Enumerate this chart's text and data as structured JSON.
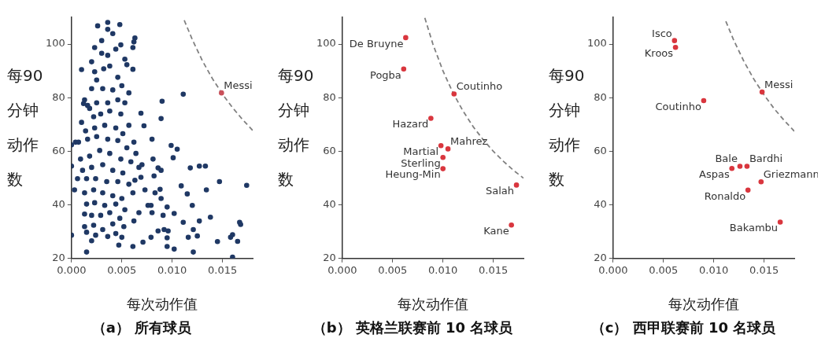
{
  "chart_data": [
    {
      "type": "scatter",
      "title": "（a） 所有球员",
      "xlabel": "每次动作值",
      "ylabel": "每90分钟动作数",
      "xlim": [
        0,
        0.018
      ],
      "ylim": [
        20,
        110
      ],
      "xticks": [
        {
          "value": 0,
          "label": "0.000"
        },
        {
          "value": 0.005,
          "label": "0.005"
        },
        {
          "value": 0.01,
          "label": "0.010"
        },
        {
          "value": 0.015,
          "label": "0.015"
        }
      ],
      "yticks": [
        20,
        40,
        60,
        80,
        100
      ],
      "grid": false,
      "legend": false,
      "marker": "circle",
      "series": [
        {
          "color": "#1f3864",
          "x": [
            0.001,
            0.0012,
            0,
            0,
            0,
            0.0015,
            0.0111,
            0.009,
            0.0089,
            0.0069,
            0.0072,
            0.008,
            0.0099,
            0.0105,
            0.0101,
            0.0081,
            0.0086,
            0.0089,
            0.0118,
            0.0127,
            0.0133,
            0.0147,
            0.0174,
            0.0109,
            0.0115,
            0.0134,
            0.012,
            0.0102,
            0.0138,
            0.0111,
            0.0127,
            0.0121,
            0.0125,
            0.0116,
            0.0145,
            0.016,
            0.0158,
            0.0165,
            0.0167,
            0.0168,
            0.016,
            0.0121,
            0.0102,
            0.0095,
            0.0095,
            0.0086,
            0.0092,
            0.0096,
            0.0091,
            0.0095,
            0.0089,
            0.0088,
            0.0082,
            0.0083,
            0.0079,
            0.008,
            0.0076,
            0.0073,
            0.0069,
            0.0067,
            0.007,
            0.0063,
            0.0061,
            0.0067,
            0.0062,
            0.0071,
            0.0061,
            0.0079,
            0.0047,
            0.005,
            0.0052,
            0.0063,
            0.0062,
            0.0061,
            0.0048,
            0.0036,
            0.0026,
            0.0036,
            0.0041,
            0.003,
            0.0023,
            0.0049,
            0.0044,
            0.003,
            0.0036,
            0.002,
            0.0053,
            0.0055,
            0.0061,
            0.0023,
            0.0032,
            0.0038,
            0.0025,
            0.0046,
            0.005,
            0.0057,
            0.002,
            0.0031,
            0.0041,
            0.0013,
            0.0018,
            0.0025,
            0.0036,
            0.0046,
            0.0053,
            0.0022,
            0.0029,
            0.0038,
            0.0049,
            0.0057,
            0.001,
            0.0014,
            0.0023,
            0.0033,
            0.0044,
            0.0051,
            0.0062,
            0.0004,
            0.0007,
            0.0016,
            0.0025,
            0.0036,
            0.0046,
            0.0055,
            0.0064,
            0.0009,
            0.0018,
            0.0028,
            0.0038,
            0.0049,
            0.0059,
            0.0011,
            0.002,
            0.0031,
            0.0041,
            0.0051,
            0.0006,
            0.0015,
            0.0024,
            0.0035,
            0.0046,
            0.0057,
            0.0003,
            0.0013,
            0.0022,
            0.0031,
            0.0041,
            0.005,
            0.0015,
            0.0023,
            0.0033,
            0.0044,
            0.0053,
            0.0013,
            0.002,
            0.0029,
            0.0038,
            0.0048,
            0.0013,
            0.0022,
            0.0031,
            0.0041,
            0.0015,
            0.0024,
            0.0036,
            0.002,
            0.0044,
            0.0016
          ],
          "values": [
            90.5,
            77.8,
            62.4,
            54.5,
            28.7,
            22.4,
            81.3,
            78.7,
            72.2,
            74.2,
            69.5,
            64.5,
            62.2,
            60.8,
            57.6,
            57.1,
            53.8,
            52.9,
            53.8,
            54.5,
            54.5,
            48.7,
            47.3,
            47.1,
            44.1,
            45.6,
            39.8,
            36.8,
            35.4,
            33.5,
            34,
            30.8,
            28.4,
            27.9,
            26.3,
            28.9,
            27.9,
            26.4,
            33.5,
            32.7,
            20.5,
            22.4,
            23.5,
            24.5,
            27.7,
            30.3,
            30.8,
            30.3,
            36.1,
            39.2,
            42.4,
            45.8,
            50.8,
            44.5,
            39.8,
            37.1,
            39.8,
            45.6,
            50.3,
            54,
            55,
            49.2,
            44.5,
            37.1,
            34,
            26.1,
            24.5,
            27.9,
            25,
            27.9,
            31.9,
            102.3,
            100.8,
            98.7,
            107.3,
            108.1,
            106.8,
            105.5,
            103.9,
            101.3,
            98.7,
            99.7,
            98.1,
            96.6,
            95.8,
            93.4,
            94.4,
            92.3,
            90.6,
            89.7,
            90.8,
            91.8,
            86.6,
            87.6,
            84.5,
            81.8,
            83.4,
            83.4,
            82.9,
            79.2,
            76,
            78.1,
            78.1,
            79.2,
            78.1,
            72.9,
            73.9,
            75,
            73.9,
            69.7,
            70.8,
            67.6,
            68.7,
            69.7,
            68.7,
            66.6,
            63.4,
            63.4,
            63.4,
            64.5,
            65.5,
            64.5,
            64,
            61.3,
            59.2,
            57.1,
            58.2,
            60.3,
            59.2,
            57.1,
            56.1,
            52.9,
            54,
            55,
            52.9,
            51.9,
            49.8,
            49.8,
            49.8,
            48.7,
            48.7,
            47.7,
            45.6,
            44.5,
            45.6,
            44.5,
            43.4,
            42.4,
            40.3,
            40.8,
            39.8,
            40.3,
            38.2,
            36.6,
            36.1,
            36.1,
            37.1,
            35,
            31.9,
            32.4,
            30.8,
            32.9,
            29.8,
            28.7,
            28.2,
            26.6,
            29.3,
            77.1
          ]
        },
        {
          "color": "#c9505a",
          "x": [
            0.0149
          ],
          "values": [
            81.8
          ]
        },
        {
          "type": "line",
          "color": "#808080",
          "line_style": "dashed",
          "marker": "none",
          "x": [
            0.0112,
            0.012,
            0.013,
            0.014,
            0.015,
            0.016,
            0.017,
            0.018
          ],
          "values": [
            108.9,
            101.7,
            93.8,
            87.1,
            81.3,
            76.3,
            71.8,
            67.8
          ]
        }
      ],
      "annotations": [
        {
          "text": "Messi",
          "x": 0.0149,
          "y": 81.8
        }
      ]
    },
    {
      "type": "scatter",
      "title": "（b） 英格兰联赛前 10 名球员",
      "xlabel": "每次动作值",
      "ylabel": "每90分钟动作数",
      "xlim": [
        0,
        0.018
      ],
      "ylim": [
        20,
        110
      ],
      "xticks": [
        {
          "value": 0,
          "label": "0.000"
        },
        {
          "value": 0.005,
          "label": "0.005"
        },
        {
          "value": 0.01,
          "label": "0.010"
        },
        {
          "value": 0.015,
          "label": "0.015"
        }
      ],
      "yticks": [
        20,
        40,
        60,
        80,
        100
      ],
      "grid": false,
      "legend": false,
      "marker": "circle",
      "series": [
        {
          "color": "#d9363e",
          "x": [
            0.0063,
            0.0061,
            0.0111,
            0.0088,
            0.0098,
            0.0105,
            0.01,
            0.01,
            0.0173,
            0.0168
          ],
          "values": [
            102.4,
            90.7,
            81.4,
            72.3,
            62.1,
            60.9,
            57.7,
            53.5,
            47.4,
            32.5
          ]
        },
        {
          "type": "line",
          "color": "#808080",
          "line_style": "dashed",
          "marker": "none",
          "x": [
            0.0082,
            0.009,
            0.01,
            0.011,
            0.012,
            0.013,
            0.014,
            0.015,
            0.016,
            0.017,
            0.018
          ],
          "values": [
            109.8,
            100,
            90,
            81.8,
            75,
            69.2,
            64.3,
            60,
            56.3,
            52.9,
            50
          ]
        }
      ],
      "annotations": [
        {
          "text": "De Bruyne",
          "x": 0.0063,
          "y": 102.4
        },
        {
          "text": "Pogba",
          "x": 0.0061,
          "y": 90.7
        },
        {
          "text": "Coutinho",
          "x": 0.0111,
          "y": 81.4
        },
        {
          "text": "Hazard",
          "x": 0.0088,
          "y": 72.3
        },
        {
          "text": "Martial",
          "x": 0.0098,
          "y": 62.1
        },
        {
          "text": "Mahrez",
          "x": 0.0105,
          "y": 60.9
        },
        {
          "text": "Sterling",
          "x": 0.01,
          "y": 57.7
        },
        {
          "text": "Heung-Min",
          "x": 0.01,
          "y": 53.5
        },
        {
          "text": "Salah",
          "x": 0.0173,
          "y": 47.4
        },
        {
          "text": "Kane",
          "x": 0.0168,
          "y": 32.5
        }
      ]
    },
    {
      "type": "scatter",
      "title": "（c） 西甲联赛前 10 名球员",
      "xlabel": "每次动作值",
      "ylabel": "每90分钟动作数",
      "xlim": [
        0,
        0.018
      ],
      "ylim": [
        20,
        110
      ],
      "xticks": [
        {
          "value": 0,
          "label": "0.000"
        },
        {
          "value": 0.005,
          "label": "0.005"
        },
        {
          "value": 0.01,
          "label": "0.010"
        },
        {
          "value": 0.015,
          "label": "0.015"
        }
      ],
      "yticks": [
        20,
        40,
        60,
        80,
        100
      ],
      "grid": false,
      "legend": false,
      "marker": "circle",
      "series": [
        {
          "color": "#d9363e",
          "x": [
            0.0061,
            0.0062,
            0.0148,
            0.009,
            0.0126,
            0.0133,
            0.0118,
            0.0147,
            0.0134,
            0.0166
          ],
          "values": [
            101.3,
            98.8,
            82.1,
            78.9,
            54.4,
            54.4,
            53.6,
            48.6,
            45.5,
            33.6
          ]
        },
        {
          "type": "line",
          "color": "#808080",
          "line_style": "dashed",
          "marker": "none",
          "x": [
            0.0112,
            0.012,
            0.013,
            0.014,
            0.015,
            0.016,
            0.017,
            0.018
          ],
          "values": [
            108.5,
            101.3,
            93.5,
            86.8,
            81,
            75.9,
            71.5,
            67.5
          ]
        }
      ],
      "annotations": [
        {
          "text": "Isco",
          "x": 0.0061,
          "y": 101.3
        },
        {
          "text": "Kroos",
          "x": 0.0062,
          "y": 98.8
        },
        {
          "text": "Messi",
          "x": 0.0148,
          "y": 82.1
        },
        {
          "text": "Coutinho",
          "x": 0.009,
          "y": 78.9
        },
        {
          "text": "Bale",
          "x": 0.0126,
          "y": 54.4
        },
        {
          "text": "Bardhi",
          "x": 0.0133,
          "y": 54.4
        },
        {
          "text": "Aspas",
          "x": 0.0118,
          "y": 53.6
        },
        {
          "text": "Griezmann",
          "x": 0.0147,
          "y": 48.6
        },
        {
          "text": "Ronaldo",
          "x": 0.0134,
          "y": 45.5
        },
        {
          "text": "Bakambu",
          "x": 0.0166,
          "y": 33.6
        }
      ]
    }
  ]
}
